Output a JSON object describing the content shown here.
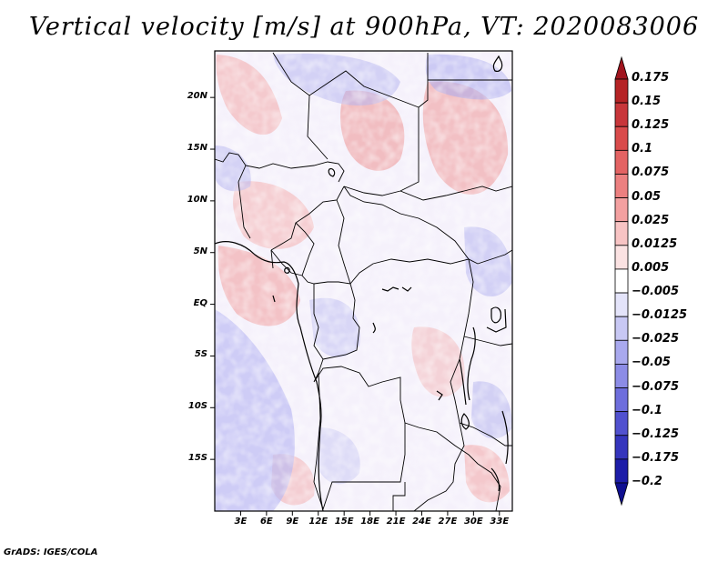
{
  "title": "Vertical velocity [m/s] at 900hPa, VT: 2020083006",
  "credit": "GrADS: IGES/COLA",
  "map": {
    "lon_range": [
      0,
      34.5
    ],
    "lat_range": [
      -20,
      24.5
    ],
    "y_ticks": [
      {
        "lat": 20,
        "label": "20N"
      },
      {
        "lat": 15,
        "label": "15N"
      },
      {
        "lat": 10,
        "label": "10N"
      },
      {
        "lat": 5,
        "label": "5N"
      },
      {
        "lat": 0,
        "label": "EQ"
      },
      {
        "lat": -5,
        "label": "5S"
      },
      {
        "lat": -10,
        "label": "10S"
      },
      {
        "lat": -15,
        "label": "15S"
      }
    ],
    "x_ticks": [
      {
        "lon": 3,
        "label": "3E"
      },
      {
        "lon": 6,
        "label": "6E"
      },
      {
        "lon": 9,
        "label": "9E"
      },
      {
        "lon": 12,
        "label": "12E"
      },
      {
        "lon": 15,
        "label": "15E"
      },
      {
        "lon": 18,
        "label": "18E"
      },
      {
        "lon": 21,
        "label": "21E"
      },
      {
        "lon": 24,
        "label": "24E"
      },
      {
        "lon": 27,
        "label": "27E"
      },
      {
        "lon": 30,
        "label": "30E"
      },
      {
        "lon": 33,
        "label": "33E"
      }
    ]
  },
  "colorbar": {
    "labels": [
      "0.175",
      "0.15",
      "0.125",
      "0.1",
      "0.075",
      "0.05",
      "0.025",
      "0.0125",
      "0.005",
      "−0.005",
      "−0.0125",
      "−0.025",
      "−0.05",
      "−0.075",
      "−0.1",
      "−0.125",
      "−0.175",
      "−0.2"
    ],
    "colors": [
      "#a0141e",
      "#b52325",
      "#c8363a",
      "#d94b4b",
      "#e36363",
      "#ec8080",
      "#f3a0a0",
      "#f8c4c4",
      "#fbe2e2",
      "#ffffff",
      "#e4e4fa",
      "#c8c8f4",
      "#a9a9ee",
      "#8c8ce6",
      "#6e6edc",
      "#5151cf",
      "#3535bd",
      "#1d1da8",
      "#0f0f90"
    ]
  }
}
